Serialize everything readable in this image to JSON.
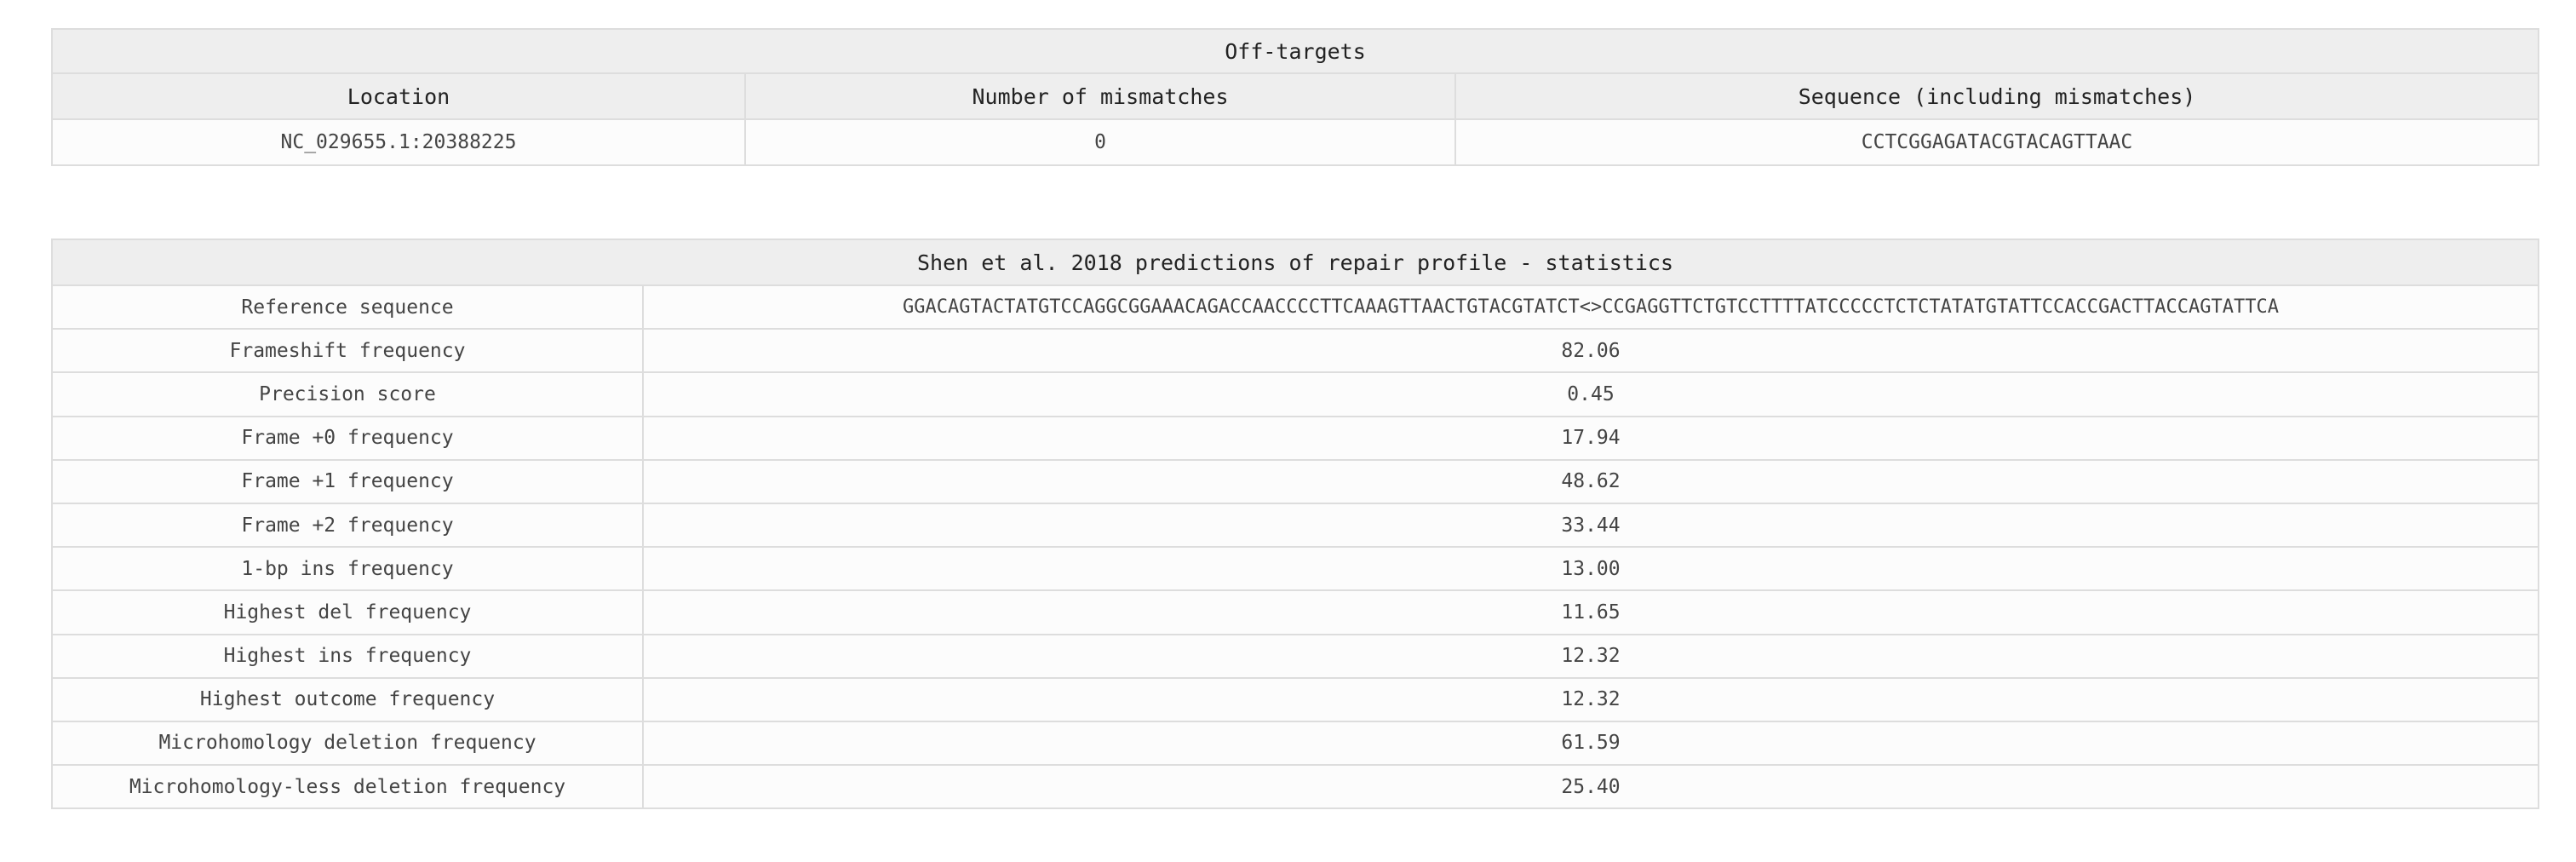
{
  "offtargets": {
    "title": "Off-targets",
    "columns": [
      "Location",
      "Number of mismatches",
      "Sequence (including mismatches)"
    ],
    "rows": [
      {
        "location": "NC_029655.1:20388225",
        "mismatches": "0",
        "sequence": "CCTCGGAGATACGTACAGTTAAC"
      }
    ]
  },
  "repair_profile": {
    "title": "Shen et al. 2018 predictions of repair profile - statistics",
    "rows": [
      {
        "label": "Reference sequence",
        "value": "GGACAGTACTATGTCCAGGCGGAAACAGACCAACCCCTTCAAAGTTAACTGTACGTATCT<>CCGAGGTTCTGTCCTTTTATCCCCCTCTCTATATGTATTCCACCGACTTACCAGTATTCA"
      },
      {
        "label": "Frameshift frequency",
        "value": "82.06"
      },
      {
        "label": "Precision score",
        "value": "0.45"
      },
      {
        "label": "Frame +0 frequency",
        "value": "17.94"
      },
      {
        "label": "Frame +1 frequency",
        "value": "48.62"
      },
      {
        "label": "Frame +2 frequency",
        "value": "33.44"
      },
      {
        "label": "1-bp ins frequency",
        "value": "13.00"
      },
      {
        "label": "Highest del frequency",
        "value": "11.65"
      },
      {
        "label": "Highest ins frequency",
        "value": "12.32"
      },
      {
        "label": "Highest outcome frequency",
        "value": "12.32"
      },
      {
        "label": "Microhomology deletion frequency",
        "value": "61.59"
      },
      {
        "label": "Microhomology-less deletion frequency",
        "value": "25.40"
      }
    ]
  }
}
